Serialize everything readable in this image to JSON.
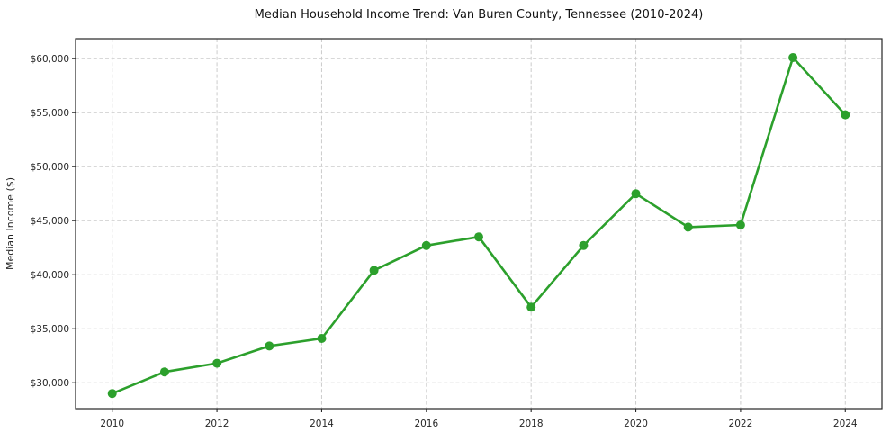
{
  "chart_data": {
    "type": "line",
    "title": "Median Household Income Trend: Van Buren County, Tennessee (2010-2024)",
    "xlabel": "",
    "ylabel": "Median Income ($)",
    "x": [
      2010,
      2011,
      2012,
      2013,
      2014,
      2015,
      2016,
      2017,
      2018,
      2019,
      2020,
      2021,
      2022,
      2023,
      2024
    ],
    "values": [
      29000,
      31000,
      31800,
      33400,
      34100,
      40400,
      42700,
      43500,
      37000,
      42700,
      47500,
      44400,
      44600,
      60100,
      54800
    ],
    "xlim": [
      2009.3,
      2024.7
    ],
    "ylim": [
      27600,
      61850
    ],
    "xticks": {
      "values": [
        2010,
        2012,
        2014,
        2016,
        2018,
        2020,
        2022,
        2024
      ],
      "labels": [
        "2010",
        "2012",
        "2014",
        "2016",
        "2018",
        "2020",
        "2022",
        "2024"
      ]
    },
    "yticks": {
      "values": [
        30000,
        35000,
        40000,
        45000,
        50000,
        55000,
        60000
      ],
      "labels": [
        "$30,000",
        "$35,000",
        "$40,000",
        "$45,000",
        "$50,000",
        "$55,000",
        "$60,000"
      ]
    },
    "grid": true,
    "grid_style": "dashed",
    "legend": false,
    "marker": "circle",
    "colors": {
      "series": "#2ca02c",
      "grid": "#cccccc",
      "axis": "#262626",
      "text": "#262626",
      "title": "#111111",
      "background": "#ffffff"
    }
  }
}
